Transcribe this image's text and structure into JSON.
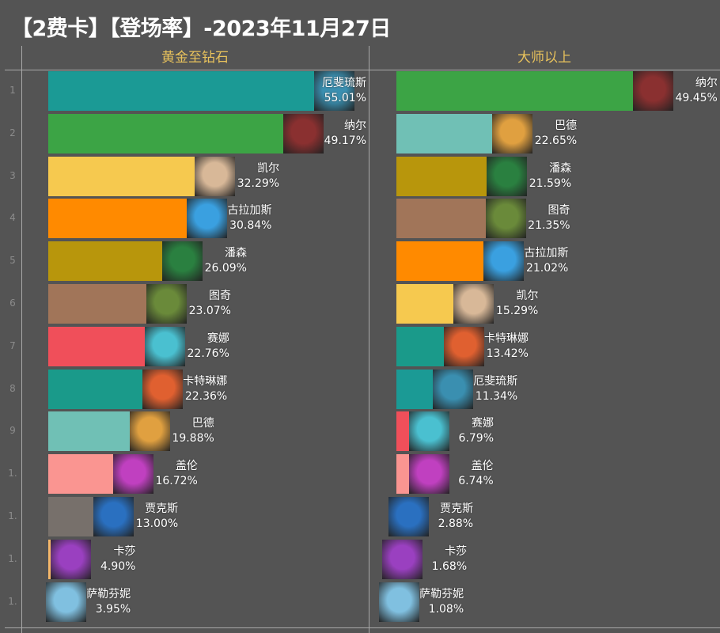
{
  "title": "【2费卡】【登场率】-2023年11月27日",
  "chart_data": [
    {
      "type": "bar",
      "orientation": "horizontal",
      "title": "黄金至钻石",
      "unit": "%",
      "rank_labels": [
        "1",
        "2",
        "3",
        "4",
        "5",
        "6",
        "7",
        "8",
        "9",
        "1.",
        "1.",
        "1.",
        "1."
      ],
      "categories": [
        "厄斐琉斯",
        "纳尔",
        "凯尔",
        "古拉加斯",
        "潘森",
        "图奇",
        "赛娜",
        "卡特琳娜",
        "巴德",
        "盖伦",
        "贾克斯",
        "卡莎",
        "萨勒芬妮"
      ],
      "values": [
        55.01,
        49.17,
        32.29,
        30.84,
        26.09,
        23.07,
        22.76,
        22.36,
        19.88,
        16.72,
        13.0,
        4.9,
        3.95
      ],
      "value_labels": [
        "55.01%",
        "49.17%",
        "32.29%",
        "30.84%",
        "26.09%",
        "23.07%",
        "22.76%",
        "22.36%",
        "19.88%",
        "16.72%",
        "13.00%",
        "4.90%",
        "3.95%"
      ]
    },
    {
      "type": "bar",
      "orientation": "horizontal",
      "title": "大师以上",
      "unit": "%",
      "categories": [
        "纳尔",
        "巴德",
        "潘森",
        "图奇",
        "古拉加斯",
        "凯尔",
        "卡特琳娜",
        "厄斐琉斯",
        "赛娜",
        "盖伦",
        "贾克斯",
        "卡莎",
        "萨勒芬妮"
      ],
      "values": [
        49.45,
        22.65,
        21.59,
        21.35,
        21.02,
        15.29,
        13.42,
        11.34,
        6.79,
        6.74,
        2.88,
        1.68,
        1.08
      ],
      "value_labels": [
        "49.45%",
        "22.65%",
        "21.59%",
        "21.35%",
        "21.02%",
        "15.29%",
        "13.42%",
        "11.34%",
        "6.79%",
        "6.74%",
        "2.88%",
        "1.68%",
        "1.08%"
      ]
    }
  ],
  "colors": {
    "厄斐琉斯": {
      "bar": "#1b9a95",
      "portrait": "#3a8fb0"
    },
    "纳尔": {
      "bar": "#3ca445",
      "portrait": "#8a3030"
    },
    "凯尔": {
      "bar": "#f6c94f",
      "portrait": "#d8b898"
    },
    "古拉加斯": {
      "bar": "#ff8a00",
      "portrait": "#3aa0e0"
    },
    "潘森": {
      "bar": "#b8960c",
      "portrait": "#2a8040"
    },
    "图奇": {
      "bar": "#a17559",
      "portrait": "#6a8a3a"
    },
    "赛娜": {
      "bar": "#f04f5a",
      "portrait": "#4ac0d0"
    },
    "卡特琳娜": {
      "bar": "#1a9a8a",
      "portrait": "#e06030"
    },
    "巴德": {
      "bar": "#70c0b5",
      "portrait": "#e0a040"
    },
    "盖伦": {
      "bar": "#fa9591",
      "portrait": "#c040c0"
    },
    "贾克斯": {
      "bar": "#77706b",
      "portrait": "#2a70c0"
    },
    "卡莎": {
      "bar": "#f5b86a",
      "portrait": "#9a40c0"
    },
    "萨勒芬妮": {
      "bar": "#e8a0b0",
      "portrait": "#80c0e0"
    }
  },
  "background": "#545454",
  "header_color": "#e8c25c"
}
